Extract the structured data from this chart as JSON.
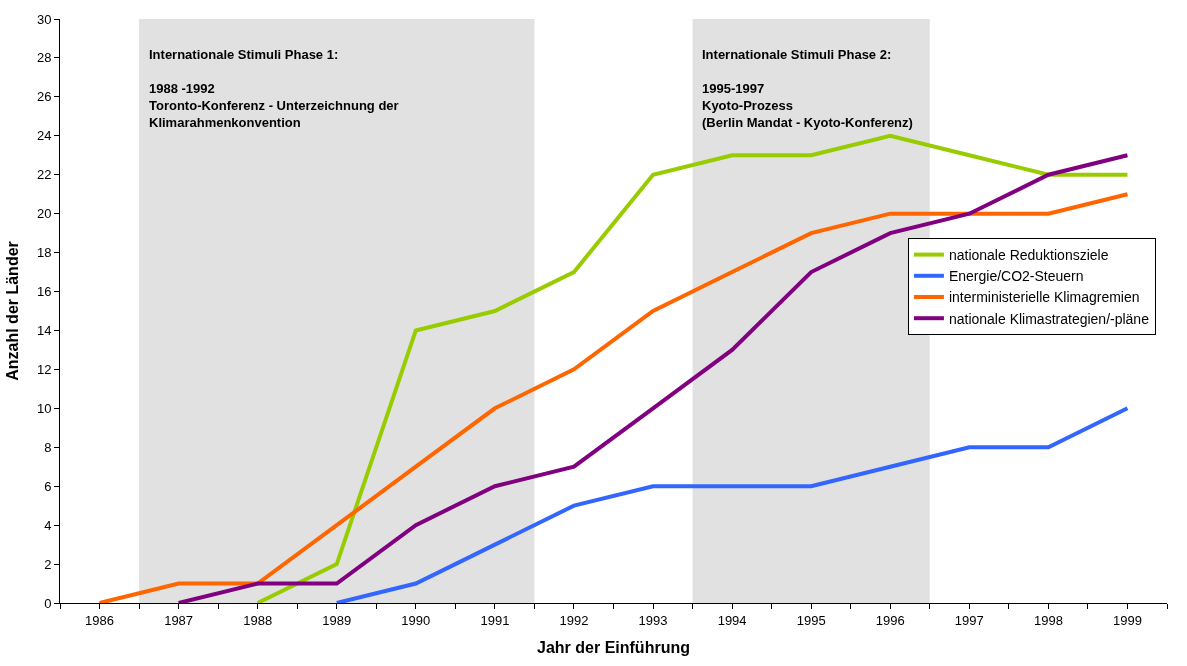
{
  "chart_data": {
    "type": "line",
    "xlabel": "Jahr der Einführung",
    "ylabel": "Anzahl der Länder",
    "xlim": [
      1985.5,
      1999.5
    ],
    "xticks": [
      1986,
      1987,
      1988,
      1989,
      1990,
      1991,
      1992,
      1993,
      1994,
      1995,
      1996,
      1997,
      1998,
      1999,
      {
        "value": 1985.5,
        "label": null
      },
      {
        "value": 1986.5,
        "label": null
      },
      {
        "value": 1987.5,
        "label": null
      },
      {
        "value": 1988.5,
        "label": null
      },
      {
        "value": 1989.5,
        "label": null
      },
      {
        "value": 1990.5,
        "label": null
      },
      {
        "value": 1991.5,
        "label": null
      },
      {
        "value": 1992.5,
        "label": null
      },
      {
        "value": 1993.5,
        "label": null
      },
      {
        "value": 1994.5,
        "label": null
      },
      {
        "value": 1995.5,
        "label": null
      },
      {
        "value": 1996.5,
        "label": null
      },
      {
        "value": 1997.5,
        "label": null
      },
      {
        "value": 1998.5,
        "label": null
      },
      {
        "value": 1999.5,
        "label": null
      }
    ],
    "ylim": [
      0,
      30
    ],
    "yticks": [
      0,
      2,
      4,
      6,
      8,
      10,
      12,
      14,
      16,
      18,
      20,
      22,
      24,
      26,
      28,
      30
    ],
    "grid": false,
    "legend": "right",
    "marker": "none",
    "line_style": "solid",
    "bands": [
      {
        "axis": "x",
        "from": 1986.5,
        "to": 1991.5,
        "color": "#d9d9d9",
        "label": "Internationale Stimuli Phase 1:\n\n1988 -1992\nToronto-Konferenz - Unterzeichnung der\nKlimarahmenkonvention"
      },
      {
        "axis": "x",
        "from": 1993.5,
        "to": 1996.5,
        "color": "#d9d9d9",
        "label": "Internationale Stimuli Phase 2:\n\n1995-1997\nKyoto-Prozess\n(Berlin Mandat - Kyoto-Konferenz)"
      }
    ],
    "series": [
      {
        "name": "nationale Reduktionsziele",
        "color": "#99cc00",
        "x": [
          1988,
          1989,
          1990,
          1991,
          1992,
          1993,
          1994,
          1995,
          1996,
          1997,
          1998,
          1999
        ],
        "values": [
          0,
          2,
          14,
          15,
          17,
          22,
          23,
          23,
          24,
          23,
          22,
          22
        ]
      },
      {
        "name": "Energie/CO2-Steuern",
        "color": "#3366ff",
        "x": [
          1989,
          1990,
          1991,
          1992,
          1993,
          1994,
          1995,
          1996,
          1997,
          1998,
          1999
        ],
        "values": [
          0,
          1,
          3,
          5,
          6,
          6,
          6,
          7,
          8,
          8,
          10
        ]
      },
      {
        "name": "interministerielle Klimagremien",
        "color": "#ff6600",
        "x": [
          1986,
          1987,
          1988,
          1989,
          1990,
          1991,
          1992,
          1993,
          1994,
          1995,
          1996,
          1997,
          1998,
          1999
        ],
        "values": [
          0,
          1,
          1,
          4,
          7,
          10,
          12,
          15,
          17,
          19,
          20,
          20,
          20,
          21
        ]
      },
      {
        "name": "nationale Klimastrategien/-pläne",
        "color": "#800080",
        "x": [
          1987,
          1988,
          1989,
          1990,
          1991,
          1992,
          1993,
          1994,
          1995,
          1996,
          1997,
          1998,
          1999
        ],
        "values": [
          0,
          1,
          1,
          4,
          6,
          7,
          10,
          13,
          17,
          19,
          20,
          22,
          23
        ]
      }
    ]
  }
}
